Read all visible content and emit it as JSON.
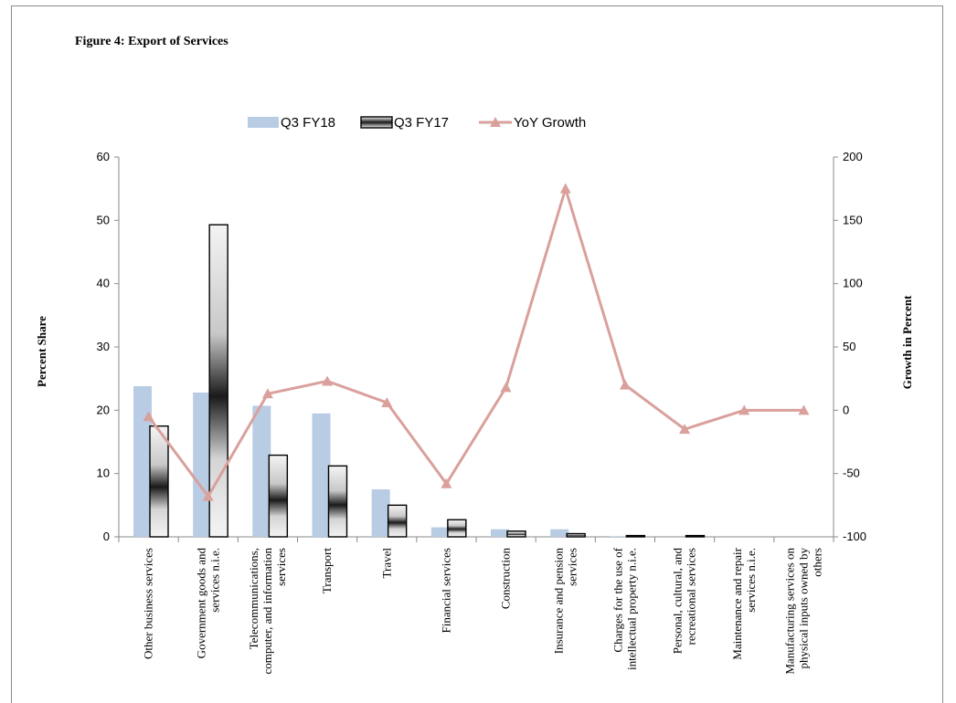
{
  "figure_title": "Figure 4: Export of Services",
  "chart_data": {
    "type": "bar",
    "categories": [
      [
        "Other business services"
      ],
      [
        "Government goods and",
        "services n.i.e."
      ],
      [
        "Telecommunications,",
        "computer, and information",
        "services"
      ],
      [
        "Transport"
      ],
      [
        "Travel"
      ],
      [
        "Financial services"
      ],
      [
        "Construction"
      ],
      [
        "Insurance and pension",
        "services"
      ],
      [
        "Charges for the use of",
        "intellectual property n.i.e."
      ],
      [
        "Personal, cultural, and",
        "recreational services"
      ],
      [
        "Maintenance and repair",
        "services n.i.e."
      ],
      [
        "Manufacturing services on",
        "physical inputs owned by",
        "others"
      ]
    ],
    "series": [
      {
        "name": "Q3 FY18",
        "kind": "bar",
        "axis": "left",
        "color": "#b8cce4",
        "values": [
          23.8,
          22.8,
          20.7,
          19.5,
          7.5,
          1.5,
          1.2,
          1.2,
          0.1,
          0.0,
          0.0,
          0.0
        ]
      },
      {
        "name": "Q3 FY17",
        "kind": "bar",
        "axis": "left",
        "pattern": "metallic",
        "values": [
          17.5,
          49.3,
          12.9,
          11.2,
          5.0,
          2.7,
          0.9,
          0.5,
          0.2,
          0.2,
          0.0,
          0.0
        ]
      },
      {
        "name": "YoY Growth",
        "kind": "line",
        "axis": "right",
        "color": "#d9a09c",
        "values": [
          -5,
          -68,
          13,
          23,
          6,
          -58,
          18,
          175,
          20,
          -15,
          0,
          0
        ]
      }
    ],
    "ylabel": "Percent Share",
    "ylabel_right": "Growth in Percent",
    "ylim": [
      0,
      60
    ],
    "yticks": [
      0,
      10,
      20,
      30,
      40,
      50,
      60
    ],
    "ylim_right": [
      -100,
      200
    ],
    "yticks_right": [
      -100,
      -50,
      0,
      50,
      100,
      150,
      200
    ],
    "legend_position": "top-center",
    "grid": false
  }
}
